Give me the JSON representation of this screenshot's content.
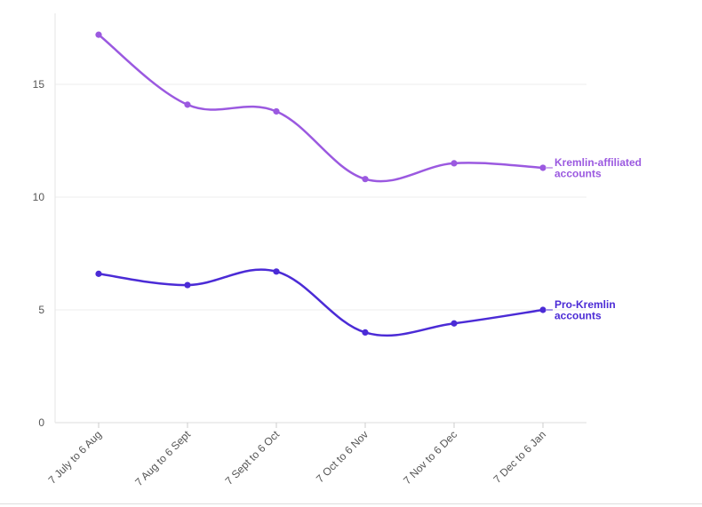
{
  "chart_data": {
    "type": "line",
    "title": "",
    "xlabel": "",
    "ylabel": "",
    "categories": [
      "7 July to 6 Aug",
      "7 Aug to 6 Sept",
      "7 Sept to 6 Oct",
      "7 Oct to 6 Nov",
      "7 Nov to 6 Dec",
      "7 Dec to 6 Jan"
    ],
    "ylim": [
      0,
      17.5
    ],
    "yticks": [
      0,
      5,
      10,
      15
    ],
    "grid": true,
    "legend": "inline-right",
    "series": [
      {
        "name": "Kremlin-affiliated accounts",
        "label_lines": [
          "Kremlin-affiliated",
          "accounts"
        ],
        "color": "#9B59E0",
        "values": [
          17.2,
          14.1,
          13.8,
          10.8,
          11.5,
          11.3
        ]
      },
      {
        "name": "Pro-Kremlin accounts",
        "label_lines": [
          "Pro-Kremlin",
          "accounts"
        ],
        "color": "#4B2BD6",
        "values": [
          6.6,
          6.1,
          6.7,
          4.0,
          4.4,
          5.0
        ]
      }
    ]
  }
}
